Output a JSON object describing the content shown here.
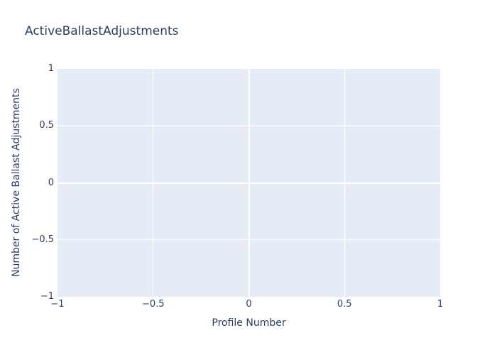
{
  "chart_data": {
    "type": "scatter",
    "title": "ActiveBallastAdjustments",
    "xlabel": "Profile Number",
    "ylabel": "Number of Active Ballast Adjustments",
    "xlim": [
      -1,
      1
    ],
    "ylim": [
      -1,
      1
    ],
    "x_ticks": [
      -1,
      -0.5,
      0,
      0.5,
      1
    ],
    "y_ticks": [
      -1,
      -0.5,
      0,
      0.5,
      1
    ],
    "x_tick_labels": [
      "−1",
      "−0.5",
      "0",
      "0.5",
      "1"
    ],
    "y_tick_labels": [
      "−1",
      "−0.5",
      "0",
      "0.5",
      "1"
    ],
    "series": [],
    "grid": true,
    "legend": false,
    "colors": {
      "paper_bg": "#ffffff",
      "plot_bg": "#e5ecf6",
      "grid": "#ffffff",
      "font": "#2a3f5f"
    }
  }
}
